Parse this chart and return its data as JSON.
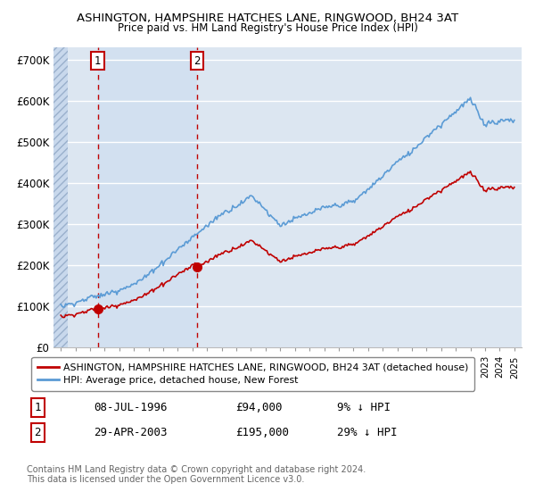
{
  "title1": "ASHINGTON, HAMPSHIRE HATCHES LANE, RINGWOOD, BH24 3AT",
  "title2": "Price paid vs. HM Land Registry's House Price Index (HPI)",
  "legend_line1": "ASHINGTON, HAMPSHIRE HATCHES LANE, RINGWOOD, BH24 3AT (detached house)",
  "legend_line2": "HPI: Average price, detached house, New Forest",
  "table_row1": [
    "1",
    "08-JUL-1996",
    "£94,000",
    "9% ↓ HPI"
  ],
  "table_row2": [
    "2",
    "29-APR-2003",
    "£195,000",
    "29% ↓ HPI"
  ],
  "footnote": "Contains HM Land Registry data © Crown copyright and database right 2024.\nThis data is licensed under the Open Government Licence v3.0.",
  "hpi_color": "#5b9bd5",
  "price_color": "#c00000",
  "dot_color": "#c00000",
  "marker1_x": 1996.52,
  "marker1_y": 94000,
  "marker2_x": 2003.33,
  "marker2_y": 195000,
  "dashed1_x": 1996.52,
  "dashed2_x": 2003.33,
  "xlim": [
    1993.5,
    2025.5
  ],
  "ylim": [
    0,
    730000
  ],
  "yticks": [
    0,
    100000,
    200000,
    300000,
    400000,
    500000,
    600000,
    700000
  ],
  "ytick_labels": [
    "£0",
    "£100K",
    "£200K",
    "£300K",
    "£400K",
    "£500K",
    "£600K",
    "£700K"
  ],
  "bg_color": "#dce6f1",
  "hatch_bg": "#c8d8ec"
}
